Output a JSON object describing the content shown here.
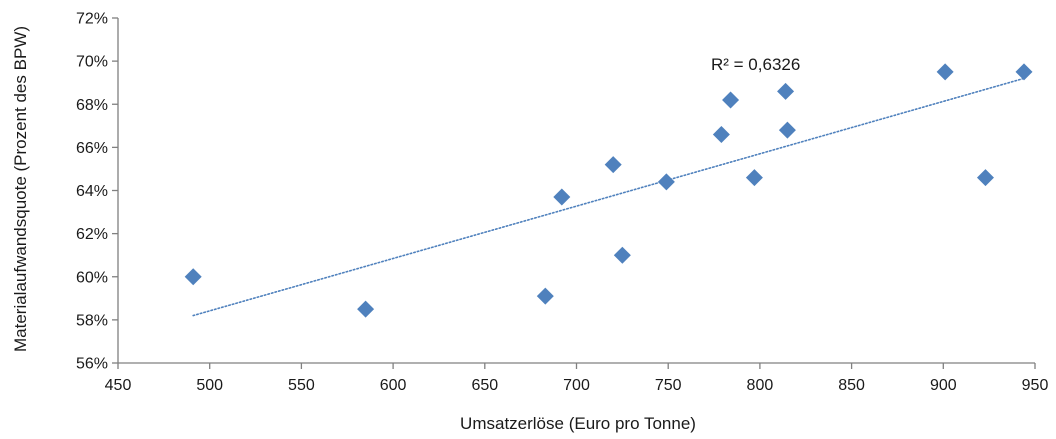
{
  "chart_data": {
    "type": "scatter",
    "xlabel": "Umsatzerlöse (Euro pro Tonne)",
    "ylabel": "Materialaufwandsquote (Prozent des BPW)",
    "xlim": [
      450,
      950
    ],
    "ylim": [
      56,
      72
    ],
    "x_ticks": [
      450,
      500,
      550,
      600,
      650,
      700,
      750,
      800,
      850,
      900,
      950
    ],
    "y_ticks": [
      56,
      58,
      60,
      62,
      64,
      66,
      68,
      70,
      72
    ],
    "x_tick_labels": [
      "450",
      "500",
      "550",
      "600",
      "650",
      "700",
      "750",
      "800",
      "850",
      "900",
      "950"
    ],
    "y_tick_labels": [
      "56%",
      "58%",
      "60%",
      "62%",
      "64%",
      "66%",
      "68%",
      "70%",
      "72%"
    ],
    "grid": false,
    "series": [
      {
        "marker": "diamond",
        "color": "#4f81bd",
        "points": [
          {
            "x": 491,
            "y": 60.0
          },
          {
            "x": 585,
            "y": 58.5
          },
          {
            "x": 683,
            "y": 59.1
          },
          {
            "x": 692,
            "y": 63.7
          },
          {
            "x": 720,
            "y": 65.2
          },
          {
            "x": 725,
            "y": 61.0
          },
          {
            "x": 749,
            "y": 64.4
          },
          {
            "x": 779,
            "y": 66.6
          },
          {
            "x": 784,
            "y": 68.2
          },
          {
            "x": 797,
            "y": 64.6
          },
          {
            "x": 814,
            "y": 68.6
          },
          {
            "x": 815,
            "y": 66.8
          },
          {
            "x": 901,
            "y": 69.5
          },
          {
            "x": 923,
            "y": 64.6
          },
          {
            "x": 944,
            "y": 69.5
          }
        ]
      }
    ],
    "trendline": {
      "type": "linear",
      "color": "#4f81bd",
      "style": "dotted",
      "x_start": 491,
      "y_start": 58.2,
      "x_end": 944,
      "y_end": 69.2
    },
    "annotations": [
      {
        "text": "R² = 0,6326"
      }
    ]
  }
}
